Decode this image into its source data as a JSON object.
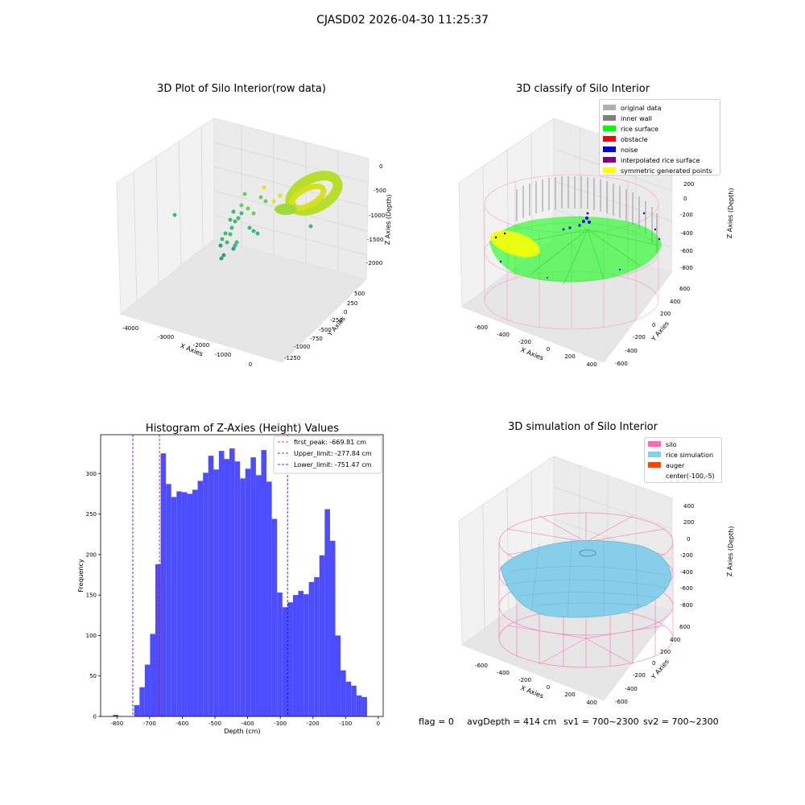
{
  "suptitle": "CJASD02 2026-04-30 11:25:37",
  "panels": {
    "raw": {
      "title": "3D Plot of Silo Interior(row data)",
      "xlabel": "X Axies",
      "ylabel": "Y Axies",
      "zlabel": "Z Axies (Depth)",
      "xticks": [
        "-4000",
        "-3000",
        "-2000",
        "-1000",
        "0"
      ],
      "yticks": [
        "500",
        "250",
        "0",
        "-250",
        "-500",
        "-750",
        "-1000",
        "-1250"
      ],
      "zticks": [
        "0",
        "-500",
        "-1000",
        "-1500",
        "-2000"
      ]
    },
    "classify": {
      "title": "3D classify of Silo Interior",
      "xlabel": "X Axies",
      "ylabel": "Y Axies",
      "zlabel": "Z Axies (Depth)",
      "xticks": [
        "-600",
        "-400",
        "-200",
        "0",
        "200",
        "400"
      ],
      "yticks": [
        "600",
        "400",
        "200",
        "0",
        "-200",
        "-400",
        "-600"
      ],
      "zticks": [
        "200",
        "0",
        "-200",
        "-400",
        "-600",
        "-800"
      ],
      "legend": [
        {
          "label": "original data",
          "color": "#b0b0b0"
        },
        {
          "label": "inner wall",
          "color": "#808080"
        },
        {
          "label": "rice surface",
          "color": "#00ff00"
        },
        {
          "label": "obstacle",
          "color": "#ff0000"
        },
        {
          "label": "noise",
          "color": "#0000ee"
        },
        {
          "label": "interpolated rice surface",
          "color": "#800080"
        },
        {
          "label": "symmetric generated points",
          "color": "#ffff00"
        }
      ]
    },
    "simulation": {
      "title": "3D simulation of Silo Interior",
      "xlabel": "X Axies",
      "ylabel": "Y Axies",
      "zlabel": "Z Axies (Depth)",
      "xticks": [
        "-600",
        "-400",
        "-200",
        "0",
        "200",
        "400"
      ],
      "yticks": [
        "600",
        "400",
        "200",
        "0",
        "-200",
        "-400",
        "-600"
      ],
      "zticks": [
        "400",
        "200",
        "0",
        "-200",
        "-400",
        "-600",
        "-800"
      ],
      "legend": [
        {
          "label": "silo",
          "color": "#ff69b4"
        },
        {
          "label": "rice simulation",
          "color": "#87ceeb"
        },
        {
          "label": "auger",
          "color": "#ff4500"
        },
        {
          "label": "center(-100,-5)",
          "color": ""
        }
      ]
    }
  },
  "footer": {
    "flag": "flag = 0",
    "avg": "avgDepth = 414 cm",
    "sv1": "sv1 = 700~2300",
    "sv2": "sv2 = 700~2300"
  },
  "colors": {
    "hist_bar": "#4d4dff",
    "first_peak_line": "#ff0000",
    "limit_line": "#0000ff",
    "silo_wire": "#ff69b4",
    "rice_sim": "#87ceeb"
  },
  "chart_data": {
    "type": "bar",
    "title": "Histogram of Z-Axies (Height) Values",
    "xlabel": "Depth (cm)",
    "ylabel": "Frequency",
    "xlim": [
      -850,
      15
    ],
    "ylim": [
      0,
      348
    ],
    "xticks": [
      -800,
      -700,
      -600,
      -500,
      -400,
      -300,
      -200,
      -100,
      0
    ],
    "yticks": [
      0,
      50,
      100,
      150,
      200,
      250,
      300
    ],
    "bin_start": -812,
    "bin_width": 16.2,
    "values": [
      2,
      0,
      0,
      0,
      14,
      36,
      64,
      102,
      188,
      325,
      287,
      271,
      278,
      277,
      275,
      280,
      291,
      301,
      322,
      305,
      328,
      318,
      331,
      315,
      294,
      306,
      320,
      298,
      329,
      290,
      244,
      153,
      135,
      141,
      150,
      155,
      151,
      166,
      172,
      199,
      256,
      217,
      100,
      57,
      43,
      38,
      26,
      24
    ],
    "vlines": [
      {
        "label": "first_peak: -669.81 cm",
        "x": -669.81,
        "color": "#ff0000"
      },
      {
        "label": "Upper_limit: -277.84 cm",
        "x": -277.84,
        "color": "#0000ff"
      },
      {
        "label": "Lower_limit: -751.47 cm",
        "x": -751.47,
        "color": "#0000ff"
      }
    ],
    "legend_position": "top-right"
  }
}
